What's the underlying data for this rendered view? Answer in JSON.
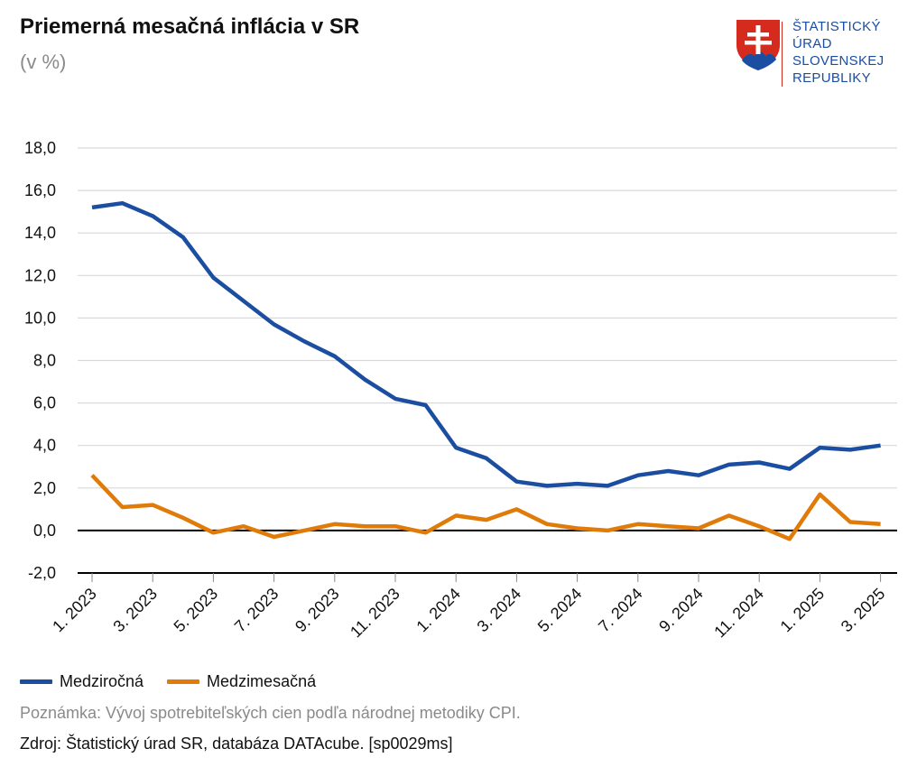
{
  "header": {
    "title": "Priemerná mesačná inflácia v SR",
    "subtitle": "(v %)"
  },
  "logo": {
    "lines": [
      "ŠTATISTICKÝ",
      "ÚRAD",
      "SLOVENSKEJ",
      "REPUBLIKY"
    ],
    "red": "#d52b1e",
    "blue": "#1b4ea0"
  },
  "chart_data": {
    "type": "line",
    "title": "Priemerná mesačná inflácia v SR",
    "ylabel": "(v %)",
    "xlabel": "",
    "ylim": [
      -2,
      18
    ],
    "yticks": [
      -2,
      0,
      2,
      4,
      6,
      8,
      10,
      12,
      14,
      16,
      18
    ],
    "ytick_labels": [
      "-2,0",
      "0,0",
      "2,0",
      "4,0",
      "6,0",
      "8,0",
      "10,0",
      "12,0",
      "14,0",
      "16,0",
      "18,0"
    ],
    "x": [
      "1. 2023",
      "2. 2023",
      "3. 2023",
      "4. 2023",
      "5. 2023",
      "6. 2023",
      "7. 2023",
      "8. 2023",
      "9. 2023",
      "10. 2023",
      "11. 2023",
      "12. 2023",
      "1. 2024",
      "2. 2024",
      "3. 2024",
      "4. 2024",
      "5. 2024",
      "6. 2024",
      "7. 2024",
      "8. 2024",
      "9. 2024",
      "10. 2024",
      "11. 2024",
      "12. 2024",
      "1. 2025",
      "2. 2025",
      "3. 2025"
    ],
    "xtick_labels": [
      "1. 2023",
      "3. 2023",
      "5. 2023",
      "7. 2023",
      "9. 2023",
      "11. 2023",
      "1. 2024",
      "3. 2024",
      "5. 2024",
      "7. 2024",
      "9. 2024",
      "11. 2024",
      "1. 2025",
      "3. 2025"
    ],
    "grid": true,
    "legend_position": "bottom-left",
    "series": [
      {
        "name": "Medziročná",
        "color": "#1b4ea0",
        "values": [
          15.2,
          15.4,
          14.8,
          13.8,
          11.9,
          10.8,
          9.7,
          8.9,
          8.2,
          7.1,
          6.2,
          5.9,
          3.9,
          3.4,
          2.3,
          2.1,
          2.2,
          2.1,
          2.6,
          2.8,
          2.6,
          3.1,
          3.2,
          2.9,
          3.9,
          3.8,
          4.0
        ]
      },
      {
        "name": "Medzimesačná",
        "color": "#e07b0a",
        "values": [
          2.6,
          1.1,
          1.2,
          0.6,
          -0.1,
          0.2,
          -0.3,
          0.0,
          0.3,
          0.2,
          0.2,
          -0.1,
          0.7,
          0.5,
          1.0,
          0.3,
          0.1,
          0.0,
          0.3,
          0.2,
          0.1,
          0.7,
          0.2,
          -0.4,
          1.7,
          0.4,
          0.3
        ]
      }
    ]
  },
  "footer": {
    "note": "Poznámka: Vývoj spotrebiteľských cien podľa národnej metodiky CPI.",
    "source": "Zdroj: Štatistický úrad SR, databáza DATAcube. [sp0029ms]"
  }
}
